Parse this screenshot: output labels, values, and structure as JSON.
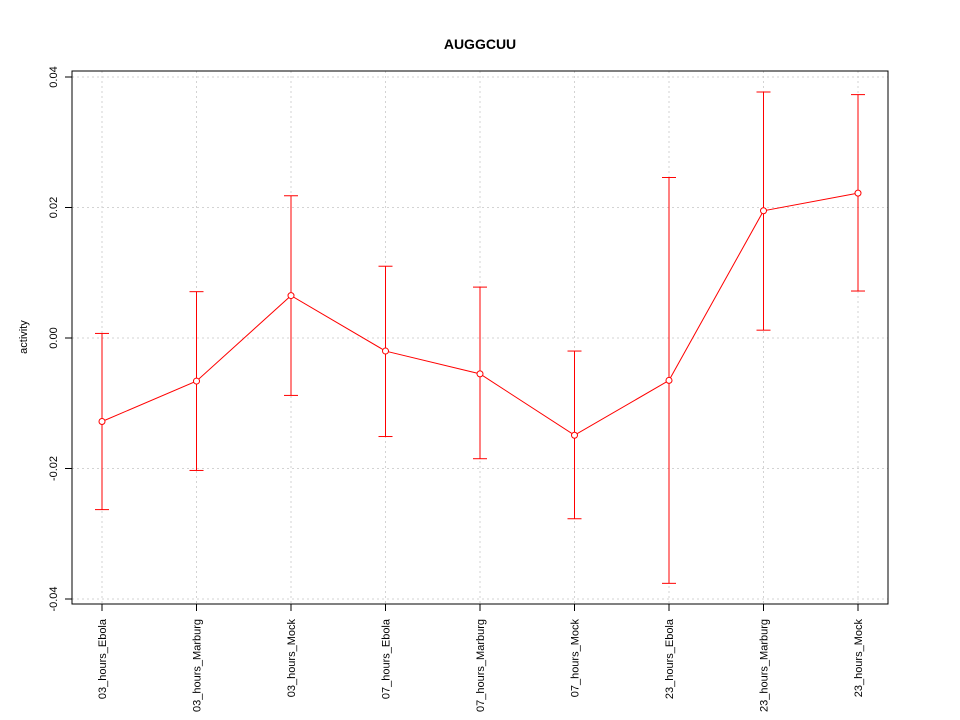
{
  "chart_data": {
    "type": "line",
    "title": "AUGGCUU",
    "xlabel": "",
    "ylabel": "activity",
    "categories": [
      "03_hours_Ebola",
      "03_hours_Marburg",
      "03_hours_Mock",
      "07_hours_Ebola",
      "07_hours_Marburg",
      "07_hours_Mock",
      "23_hours_Ebola",
      "23_hours_Marburg",
      "23_hours_Mock"
    ],
    "values": [
      -0.0128,
      -0.0066,
      0.0065,
      -0.002,
      -0.0055,
      -0.0149,
      -0.0065,
      0.0195,
      0.0222
    ],
    "error_upper": [
      0.0007,
      0.0071,
      0.0218,
      0.011,
      0.0078,
      -0.002,
      0.0246,
      0.0377,
      0.0373
    ],
    "error_lower": [
      -0.0263,
      -0.0203,
      -0.0088,
      -0.0151,
      -0.0185,
      -0.0277,
      -0.0376,
      0.0012,
      0.0072
    ],
    "ylim": [
      -0.04,
      0.04
    ],
    "yticks": [
      -0.04,
      -0.02,
      0.0,
      0.02,
      0.04
    ],
    "ytick_labels": [
      "-0.04",
      "-0.02",
      "0.00",
      "0.02",
      "0.04"
    ],
    "grid": true,
    "colors": {
      "series": "#ff0000",
      "grid": "#d3d3d3",
      "axis": "#000000"
    }
  }
}
